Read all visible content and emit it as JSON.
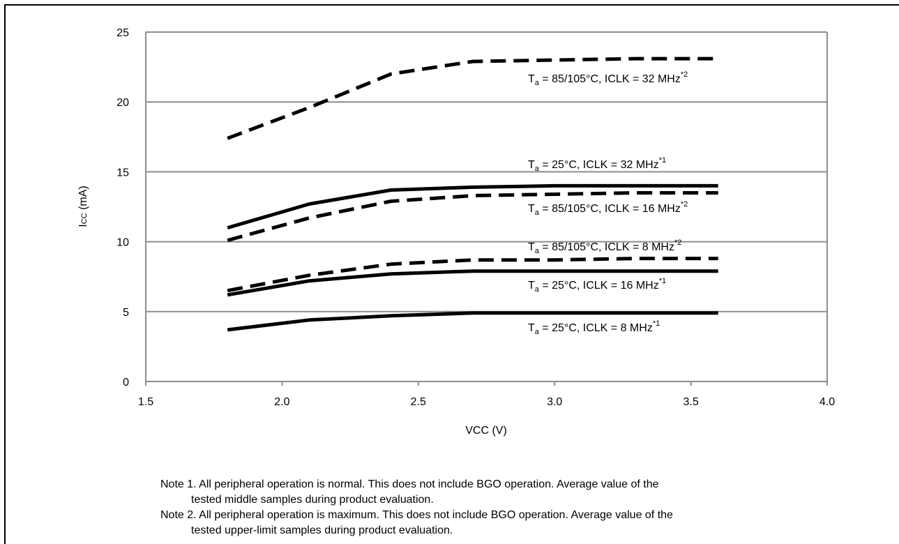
{
  "chart_data": {
    "type": "line",
    "xlabel": "VCC (V)",
    "ylabel_main": "I",
    "ylabel_sub": "CC",
    "ylabel_unit": " (mA)",
    "xlim": [
      1.5,
      4.0
    ],
    "ylim": [
      0,
      25
    ],
    "x_ticks": [
      1.5,
      2.0,
      2.5,
      3.0,
      3.5,
      4.0
    ],
    "x_tick_labels": [
      "1.5",
      "2.0",
      "2.5",
      "3.0",
      "3.5",
      "4.0"
    ],
    "y_ticks": [
      0,
      5,
      10,
      15,
      20,
      25
    ],
    "y_tick_labels": [
      "0",
      "5",
      "10",
      "15",
      "20",
      "25"
    ],
    "grid": "horizontal",
    "legend": "inline",
    "x": [
      1.8,
      2.1,
      2.4,
      2.7,
      3.0,
      3.3,
      3.6
    ],
    "series": [
      {
        "label_main": "T",
        "label_sub": "a",
        "label_rest": " = 85/105°C, ICLK = 32 MHz",
        "label_sup": "*2",
        "style": "dashed",
        "values": [
          17.4,
          19.6,
          22.0,
          22.9,
          23.0,
          23.1,
          23.1
        ]
      },
      {
        "label_main": "T",
        "label_sub": "a",
        "label_rest": " = 25°C, ICLK = 32 MHz",
        "label_sup": "*1",
        "style": "solid",
        "values": [
          11.0,
          12.7,
          13.7,
          13.9,
          14.0,
          14.0,
          14.0
        ]
      },
      {
        "label_main": "T",
        "label_sub": "a",
        "label_rest": " = 85/105°C, ICLK = 16 MHz",
        "label_sup": "*2",
        "style": "dashed",
        "values": [
          10.1,
          11.7,
          12.9,
          13.3,
          13.4,
          13.5,
          13.5
        ]
      },
      {
        "label_main": "T",
        "label_sub": "a",
        "label_rest": " = 85/105°C, ICLK = 8 MHz",
        "label_sup": "*2",
        "style": "dashed",
        "values": [
          6.5,
          7.6,
          8.4,
          8.7,
          8.7,
          8.8,
          8.8
        ]
      },
      {
        "label_main": "T",
        "label_sub": "a",
        "label_rest": " = 25°C, ICLK = 16 MHz",
        "label_sup": "*1",
        "style": "solid",
        "values": [
          6.2,
          7.2,
          7.7,
          7.9,
          7.9,
          7.9,
          7.9
        ]
      },
      {
        "label_main": "T",
        "label_sub": "a",
        "label_rest": " = 25°C, ICLK = 8 MHz",
        "label_sup": "*1",
        "style": "solid",
        "values": [
          3.7,
          4.4,
          4.7,
          4.9,
          4.9,
          4.9,
          4.9
        ]
      }
    ],
    "colors": {
      "line": "#000000",
      "grid": "#8c8c8c",
      "axis": "#8c8c8c"
    }
  },
  "notes": [
    {
      "line1": "Note 1. All peripheral operation is normal. This does not include BGO operation. Average value of the",
      "line2": "tested middle samples during product evaluation."
    },
    {
      "line1": "Note 2. All peripheral operation is maximum. This does not include BGO operation. Average value of the",
      "line2": "tested upper-limit samples during product evaluation."
    }
  ]
}
